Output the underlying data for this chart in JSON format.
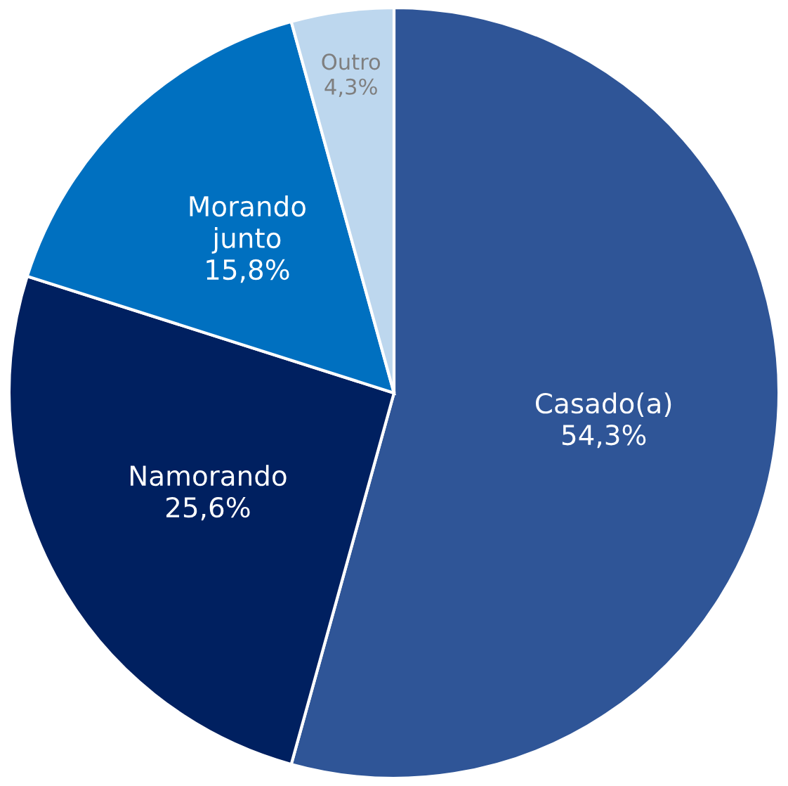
{
  "chart_data": {
    "type": "pie",
    "categories": [
      "Casado(a)",
      "Namorando",
      "Morando\njunto",
      "Outro"
    ],
    "values": [
      54.3,
      25.6,
      15.8,
      4.3
    ],
    "value_labels": [
      "54,3%",
      "25,6%",
      "15,8%",
      "4,3%"
    ],
    "colors": [
      "#2f5597",
      "#002060",
      "#0070c0",
      "#bdd7ee"
    ],
    "legend": false
  }
}
